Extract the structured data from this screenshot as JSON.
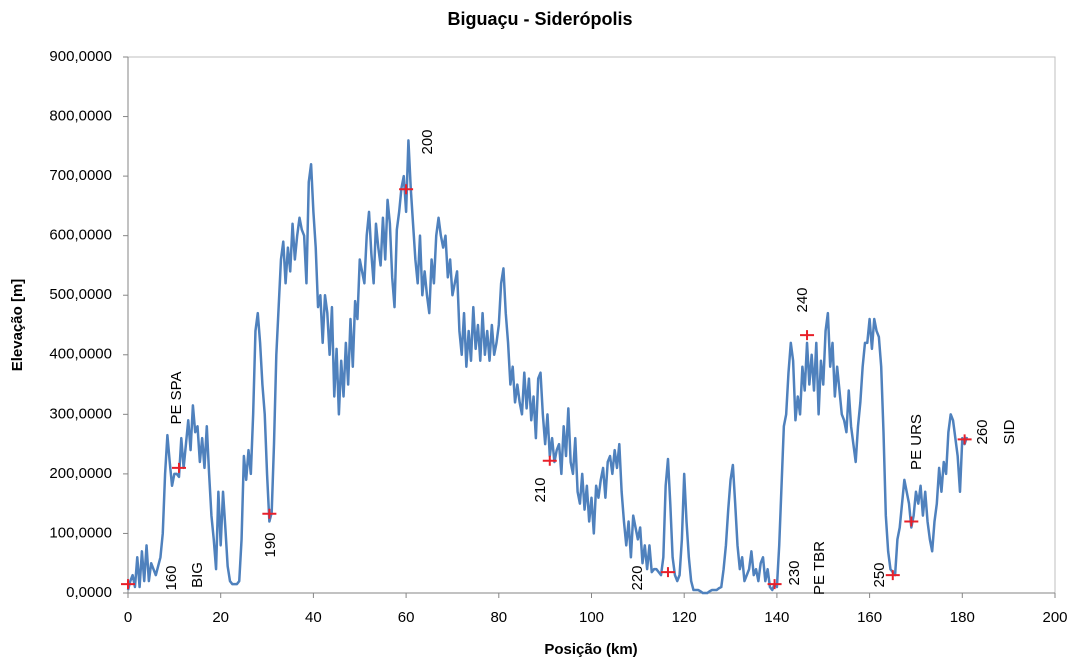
{
  "chart_data": {
    "type": "line",
    "title": "Biguaçu - Siderópolis",
    "x_label": "Posição (km)",
    "y_label": "Elevação [m]",
    "xlim": [
      0,
      200
    ],
    "xticks": [
      0,
      20,
      40,
      60,
      80,
      100,
      120,
      140,
      160,
      180,
      200
    ],
    "ylim": [
      0,
      900
    ],
    "yticks": [
      {
        "value": 0,
        "label": "0,0000"
      },
      {
        "value": 100,
        "label": "100,0000"
      },
      {
        "value": 200,
        "label": "200,0000"
      },
      {
        "value": 300,
        "label": "300,0000"
      },
      {
        "value": 400,
        "label": "400,0000"
      },
      {
        "value": 500,
        "label": "500,0000"
      },
      {
        "value": 600,
        "label": "600,0000"
      },
      {
        "value": 700,
        "label": "700,0000"
      },
      {
        "value": 800,
        "label": "800,0000"
      },
      {
        "value": 900,
        "label": "900,0000"
      }
    ],
    "color": "#4f81bd",
    "x": [
      0,
      0.5,
      1,
      1.5,
      2,
      2.5,
      3,
      3.5,
      4,
      4.5,
      5,
      5.5,
      6,
      6.5,
      7,
      7.5,
      8,
      8.5,
      9,
      9.5,
      10,
      10.5,
      11,
      11.5,
      12,
      12.5,
      13,
      13.5,
      14,
      14.5,
      15,
      15.5,
      16,
      16.5,
      17,
      17.5,
      18,
      18.5,
      19,
      19.5,
      20,
      20.5,
      21,
      21.5,
      22,
      22.5,
      23,
      23.5,
      24,
      24.5,
      25,
      25.5,
      26,
      26.5,
      27,
      27.5,
      28,
      28.5,
      29,
      29.5,
      30,
      30.5,
      31,
      31.5,
      32,
      32.5,
      33,
      33.5,
      34,
      34.5,
      35,
      35.5,
      36,
      36.5,
      37,
      37.5,
      38,
      38.5,
      39,
      39.5,
      40,
      40.5,
      41,
      41.5,
      42,
      42.5,
      43,
      43.5,
      44,
      44.5,
      45,
      45.5,
      46,
      46.5,
      47,
      47.5,
      48,
      48.5,
      49,
      49.5,
      50,
      50.5,
      51,
      51.5,
      52,
      52.5,
      53,
      53.5,
      54,
      54.5,
      55,
      55.5,
      56,
      56.5,
      57,
      57.5,
      58,
      58.5,
      59,
      59.5,
      60,
      60.5,
      61,
      61.5,
      62,
      62.5,
      63,
      63.5,
      64,
      64.5,
      65,
      65.5,
      66,
      66.5,
      67,
      67.5,
      68,
      68.5,
      69,
      69.5,
      70,
      70.5,
      71,
      71.5,
      72,
      72.5,
      73,
      73.5,
      74,
      74.5,
      75,
      75.5,
      76,
      76.5,
      77,
      77.5,
      78,
      78.5,
      79,
      79.5,
      80,
      80.5,
      81,
      81.5,
      82,
      82.5,
      83,
      83.5,
      84,
      84.5,
      85,
      85.5,
      86,
      86.5,
      87,
      87.5,
      88,
      88.5,
      89,
      89.5,
      90,
      90.5,
      91,
      91.5,
      92,
      92.5,
      93,
      93.5,
      94,
      94.5,
      95,
      95.5,
      96,
      96.5,
      97,
      97.5,
      98,
      98.5,
      99,
      99.5,
      100,
      100.5,
      101,
      101.5,
      102,
      102.5,
      103,
      103.5,
      104,
      104.5,
      105,
      105.5,
      106,
      106.5,
      107,
      107.5,
      108,
      108.5,
      109,
      109.5,
      110,
      110.5,
      111,
      111.5,
      112,
      112.5,
      113,
      113.5,
      114,
      114.5,
      115,
      115.5,
      116,
      116.5,
      117,
      117.5,
      118,
      118.5,
      119,
      119.5,
      120,
      120.5,
      121,
      121.5,
      122,
      122.5,
      123,
      123.5,
      124,
      124.5,
      125,
      125.5,
      126,
      126.5,
      127,
      127.5,
      128,
      128.5,
      129,
      129.5,
      130,
      130.5,
      131,
      131.5,
      132,
      132.5,
      133,
      133.5,
      134,
      134.5,
      135,
      135.5,
      136,
      136.5,
      137,
      137.5,
      138,
      138.5,
      139,
      139.5,
      140,
      140.5,
      141,
      141.5,
      142,
      142.5,
      143,
      143.5,
      144,
      144.5,
      145,
      145.5,
      146,
      146.5,
      147,
      147.5,
      148,
      148.5,
      149,
      149.5,
      150,
      150.5,
      151,
      151.5,
      152,
      152.5,
      153,
      153.5,
      154,
      154.5,
      155,
      155.5,
      156,
      156.5,
      157,
      157.5,
      158,
      158.5,
      159,
      159.5,
      160,
      160.5,
      161,
      161.5,
      162,
      162.5,
      163,
      163.5,
      164,
      164.5,
      165,
      165.5,
      166,
      166.5,
      167,
      167.5,
      168,
      168.5,
      169,
      169.5,
      170,
      170.5,
      171,
      171.5,
      172,
      172.5,
      173,
      173.5,
      174,
      174.5,
      175,
      175.5,
      176,
      176.5,
      177,
      177.5,
      178,
      178.5,
      179,
      179.5,
      180,
      180.5,
      181
    ],
    "values": [
      5,
      20,
      30,
      10,
      60,
      10,
      70,
      20,
      80,
      20,
      50,
      40,
      30,
      45,
      60,
      100,
      200,
      265,
      220,
      180,
      200,
      200,
      195,
      260,
      210,
      250,
      290,
      240,
      315,
      270,
      280,
      220,
      260,
      210,
      280,
      200,
      130,
      90,
      40,
      170,
      80,
      170,
      110,
      45,
      20,
      15,
      15,
      15,
      20,
      90,
      230,
      190,
      240,
      200,
      300,
      440,
      470,
      420,
      350,
      300,
      200,
      120,
      135,
      250,
      400,
      480,
      560,
      590,
      520,
      580,
      540,
      620,
      560,
      600,
      630,
      610,
      600,
      520,
      690,
      720,
      640,
      580,
      480,
      500,
      420,
      500,
      470,
      400,
      480,
      330,
      410,
      300,
      390,
      330,
      420,
      350,
      460,
      380,
      490,
      460,
      560,
      540,
      520,
      600,
      640,
      570,
      520,
      620,
      580,
      550,
      630,
      560,
      660,
      620,
      530,
      480,
      610,
      640,
      680,
      700,
      640,
      760,
      680,
      620,
      560,
      520,
      600,
      500,
      540,
      500,
      470,
      560,
      520,
      600,
      630,
      600,
      580,
      600,
      530,
      560,
      500,
      520,
      540,
      440,
      400,
      470,
      380,
      440,
      390,
      480,
      410,
      450,
      390,
      470,
      400,
      440,
      390,
      450,
      400,
      420,
      450,
      520,
      545,
      470,
      420,
      350,
      380,
      320,
      350,
      320,
      300,
      370,
      310,
      360,
      290,
      330,
      260,
      360,
      370,
      300,
      250,
      300,
      230,
      260,
      220,
      240,
      250,
      200,
      280,
      230,
      310,
      220,
      200,
      260,
      170,
      150,
      200,
      140,
      180,
      120,
      160,
      100,
      180,
      160,
      190,
      210,
      160,
      220,
      230,
      200,
      240,
      210,
      250,
      170,
      120,
      80,
      120,
      60,
      130,
      110,
      90,
      110,
      50,
      80,
      40,
      80,
      35,
      40,
      40,
      35,
      30,
      60,
      180,
      225,
      150,
      60,
      30,
      20,
      30,
      90,
      200,
      120,
      60,
      20,
      5,
      5,
      5,
      3,
      0,
      0,
      0,
      3,
      5,
      5,
      5,
      8,
      10,
      40,
      80,
      140,
      190,
      215,
      150,
      80,
      40,
      60,
      20,
      30,
      40,
      70,
      30,
      40,
      20,
      50,
      60,
      20,
      40,
      10,
      5,
      15,
      10,
      80,
      180,
      280,
      300,
      370,
      420,
      390,
      290,
      330,
      300,
      380,
      340,
      420,
      350,
      400,
      340,
      420,
      300,
      390,
      350,
      440,
      470,
      380,
      420,
      330,
      380,
      340,
      300,
      290,
      270,
      340,
      280,
      250,
      220,
      280,
      320,
      380,
      420,
      420,
      460,
      410,
      460,
      440,
      430,
      380,
      270,
      130,
      70,
      40,
      35,
      30,
      90,
      110,
      150,
      190,
      170,
      150,
      110,
      130,
      170,
      150,
      180,
      130,
      170,
      120,
      90,
      70,
      120,
      150,
      210,
      170,
      220,
      200,
      270,
      300,
      290,
      260,
      230,
      170,
      260,
      250,
      262
    ],
    "markers": {
      "color": "#e8202a",
      "x": [
        0,
        11,
        30.5,
        60,
        91,
        116.5,
        139.5,
        146.5,
        165,
        169,
        180.5
      ],
      "values": [
        15,
        210,
        133,
        678,
        222,
        35,
        15,
        433,
        30,
        120,
        258
      ]
    },
    "annotations": [
      "160",
      "BIG",
      "PE SPA",
      "190",
      "200",
      "210",
      "220",
      "230",
      "PE TBR",
      "240",
      "250",
      "PE URS",
      "260",
      "SID"
    ]
  }
}
